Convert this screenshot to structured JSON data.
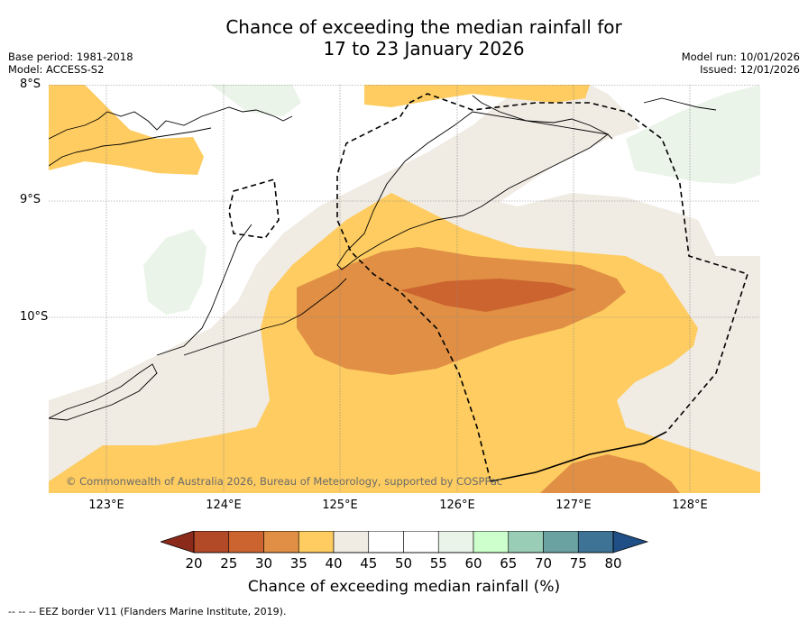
{
  "title": {
    "line1": "Chance of exceeding the median rainfall for",
    "line2": "17 to 23 January 2026"
  },
  "meta_left": {
    "base_period": "Base period: 1981-2018",
    "model": "Model: ACCESS-S2"
  },
  "meta_right": {
    "model_run": "Model run: 10/01/2026",
    "issued": "Issued: 12/01/2026"
  },
  "lat_labels": [
    "8°S",
    "9°S",
    "10°S"
  ],
  "lon_labels": [
    "123°E",
    "124°E",
    "125°E",
    "126°E",
    "127°E",
    "128°E"
  ],
  "copyright": "© Commonwealth of Australia 2026, Bureau of Meteorology, supported by COSPPac",
  "colorbar": {
    "ticks": [
      "20",
      "25",
      "30",
      "35",
      "40",
      "45",
      "50",
      "55",
      "60",
      "65",
      "70",
      "75",
      "80"
    ],
    "colors": [
      "#8b2a1a",
      "#b24a28",
      "#cc6430",
      "#e08f45",
      "#fecc60",
      "#f0ebe3",
      "#ffffff",
      "#ffffff",
      "#eaf4e8",
      "#ccffcc",
      "#99cdb6",
      "#6aa2a2",
      "#3e7395",
      "#1f4f86"
    ],
    "label": "Chance of exceeding median rainfall (%)"
  },
  "footer": "--  --  -- EEZ border V11 (Flanders Marine Institute, 2019)."
}
